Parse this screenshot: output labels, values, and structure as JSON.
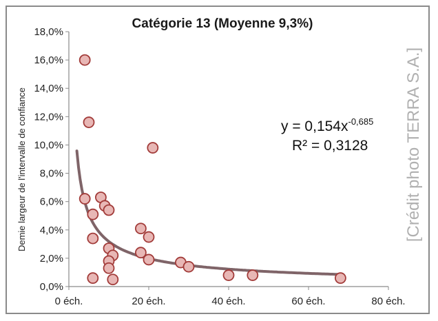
{
  "chart_data": {
    "type": "scatter",
    "title": "Catégorie 13 (Moyenne 9,3%)",
    "xlabel": "",
    "ylabel": "Demie largeur de l'intervalle de confiance",
    "xlim": [
      0,
      80
    ],
    "ylim": [
      0,
      0.18
    ],
    "x_ticks": [
      0,
      20,
      40,
      60,
      80
    ],
    "x_tick_labels": [
      "0 éch.",
      "20 éch.",
      "40 éch.",
      "60 éch.",
      "80 éch."
    ],
    "y_ticks": [
      0,
      0.02,
      0.04,
      0.06,
      0.08,
      0.1,
      0.12,
      0.14,
      0.16,
      0.18
    ],
    "y_tick_labels": [
      "0,0%",
      "2,0%",
      "4,0%",
      "6,0%",
      "8,0%",
      "10,0%",
      "12,0%",
      "14,0%",
      "16,0%",
      "18,0%"
    ],
    "grid": false,
    "points": [
      {
        "x": 4,
        "y": 0.16
      },
      {
        "x": 5,
        "y": 0.116
      },
      {
        "x": 4,
        "y": 0.062
      },
      {
        "x": 6,
        "y": 0.051
      },
      {
        "x": 6,
        "y": 0.034
      },
      {
        "x": 6,
        "y": 0.006
      },
      {
        "x": 8,
        "y": 0.063
      },
      {
        "x": 9,
        "y": 0.057
      },
      {
        "x": 10,
        "y": 0.054
      },
      {
        "x": 10,
        "y": 0.027
      },
      {
        "x": 11,
        "y": 0.022
      },
      {
        "x": 10,
        "y": 0.018
      },
      {
        "x": 10,
        "y": 0.013
      },
      {
        "x": 11,
        "y": 0.005
      },
      {
        "x": 18,
        "y": 0.041
      },
      {
        "x": 20,
        "y": 0.035
      },
      {
        "x": 18,
        "y": 0.024
      },
      {
        "x": 20,
        "y": 0.019
      },
      {
        "x": 21,
        "y": 0.098
      },
      {
        "x": 28,
        "y": 0.017
      },
      {
        "x": 30,
        "y": 0.014
      },
      {
        "x": 40,
        "y": 0.008
      },
      {
        "x": 46,
        "y": 0.008
      },
      {
        "x": 68,
        "y": 0.006
      }
    ],
    "trendline": {
      "type": "power",
      "a": 0.154,
      "b": -0.685,
      "x_range": [
        2,
        68
      ],
      "equation_text": "y = 0,154x",
      "equation_exponent": "-0,685",
      "r2_text": "R² = 0,3128"
    },
    "colors": {
      "marker_fill": "#e8b7b5",
      "marker_stroke": "#a23b39",
      "trendline": "#7f6468"
    }
  },
  "watermark_text": "[Crédit photo TERRA S.A.]"
}
